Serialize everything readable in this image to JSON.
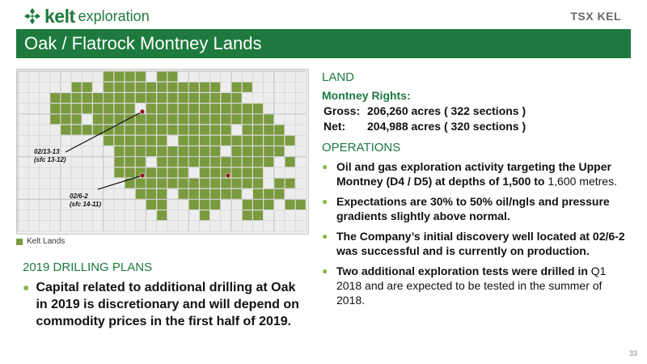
{
  "header": {
    "logo": {
      "brand": "kelt",
      "suffix": "exploration",
      "icon": "kelt-leaf-logo-icon"
    },
    "exchange_logo": "TSX KEL",
    "title": "Oak / Flatrock Montney Lands"
  },
  "map": {
    "legend_label": "Kelt Lands",
    "wells": [
      {
        "label_line1": "02/13-13",
        "label_line2": "(sfc 13-12)"
      },
      {
        "label_line1": "02/6-2",
        "label_line2": "(sfc 14-11)"
      }
    ],
    "colors": {
      "land": "#7a9a3e",
      "grid": "#c9c9c9",
      "well": "#8b1a1a"
    }
  },
  "drilling": {
    "title": "2019 DRILLING PLANS",
    "bullet": "Capital related to additional drilling at Oak in 2019 is discretionary and will depend on commodity prices in the first half of 2019."
  },
  "land": {
    "title": "LAND",
    "rights_label": "Montney Rights:",
    "gross_key": "Gross:",
    "gross_value": "206,260 acres ( 322 sections )",
    "net_key": "Net:",
    "net_value": "204,988 acres ( 320 sections )"
  },
  "operations": {
    "title": "OPERATIONS",
    "b1_a": "Oil and gas exploration activity targeting the ",
    "b1_b": "Upper Montney (D4 / D5) at depths of 1,500 to",
    "b1_c": " 1,600 metres.",
    "b2": "Expectations are 30% to 50% oil/ngls and pressure gradients slightly above normal.",
    "b3": "The Company’s initial discovery well located at 02/6-2 was successful and is currently on production.",
    "b4_a": "Two additional exploration tests were drilled in",
    "b4_b": " Q1 2018 and are expected to be tested in the summer of 2018."
  },
  "colors": {
    "brand_green": "#1e7a3e",
    "bullet_green": "#8ab84a"
  },
  "page_number": "33"
}
